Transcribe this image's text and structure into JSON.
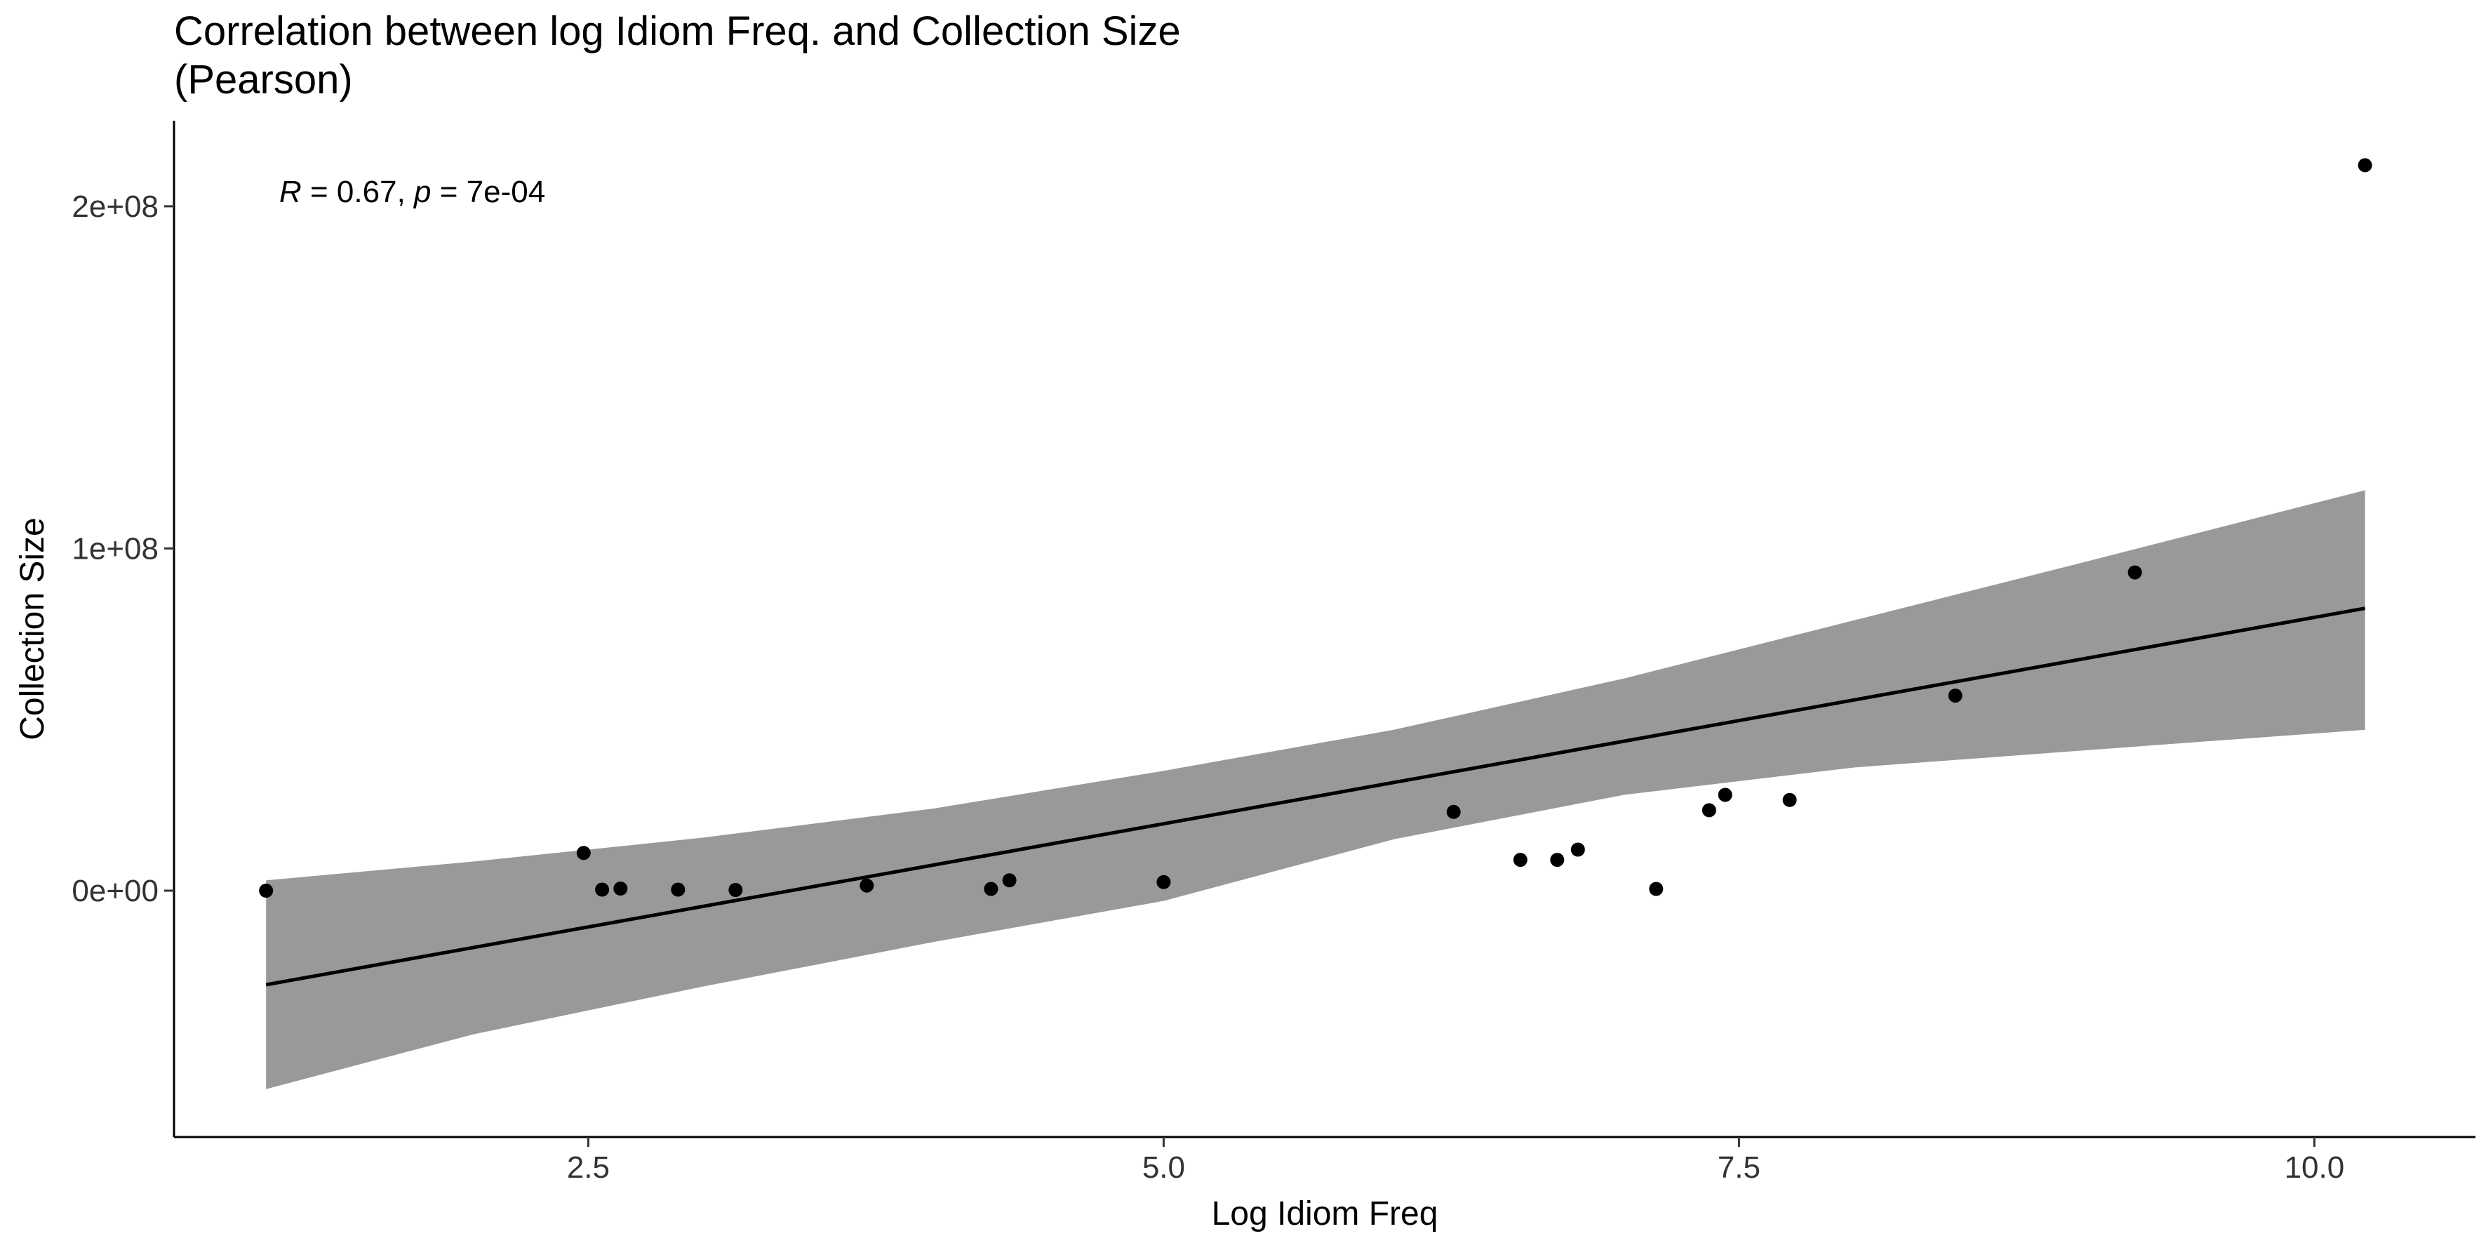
{
  "chart_data": {
    "type": "scatter",
    "title": "Correlation between log Idiom Freq. and Collection Size",
    "subtitle": "(Pearson)",
    "xlabel": "Log Idiom Freq",
    "ylabel": "Collection Size",
    "xlim": [
      0.7,
      10.7
    ],
    "ylim": [
      -72000000,
      225000000
    ],
    "x_ticks": [
      2.5,
      5.0,
      7.5,
      10.0
    ],
    "x_tick_labels": [
      "2.5",
      "5.0",
      "7.5",
      "10.0"
    ],
    "y_ticks": [
      0,
      100000000,
      200000000
    ],
    "y_tick_labels": [
      "0e+00",
      "1e+08",
      "2e+08"
    ],
    "grid": false,
    "annotation": {
      "r_symbol": "R",
      "r_value": " = 0.67, ",
      "p_symbol": "p",
      "p_value": " = 7e-04"
    },
    "points": [
      {
        "x": 1.1,
        "y": 0
      },
      {
        "x": 2.48,
        "y": 11000000
      },
      {
        "x": 2.56,
        "y": 300000
      },
      {
        "x": 2.64,
        "y": 600000
      },
      {
        "x": 2.89,
        "y": 300000
      },
      {
        "x": 3.14,
        "y": 200000
      },
      {
        "x": 3.71,
        "y": 1500000
      },
      {
        "x": 4.25,
        "y": 500000
      },
      {
        "x": 4.33,
        "y": 3000000
      },
      {
        "x": 5.0,
        "y": 2500000
      },
      {
        "x": 6.26,
        "y": 23000000
      },
      {
        "x": 6.55,
        "y": 9000000
      },
      {
        "x": 6.71,
        "y": 9000000
      },
      {
        "x": 6.8,
        "y": 12000000
      },
      {
        "x": 7.14,
        "y": 500000
      },
      {
        "x": 7.37,
        "y": 23500000
      },
      {
        "x": 7.44,
        "y": 28000000
      },
      {
        "x": 7.72,
        "y": 26500000
      },
      {
        "x": 8.44,
        "y": 57000000
      },
      {
        "x": 9.22,
        "y": 93000000
      },
      {
        "x": 10.22,
        "y": 212000000
      }
    ],
    "fit_line": {
      "x": [
        1.1,
        10.22
      ],
      "y": [
        -27500000,
        82500000
      ]
    },
    "confidence_band": {
      "x": [
        1.1,
        2.0,
        3.0,
        4.0,
        5.0,
        6.0,
        7.0,
        8.0,
        9.0,
        10.22
      ],
      "upper": [
        3000000,
        8500000,
        15500000,
        24000000,
        35000000,
        47000000,
        62000000,
        79000000,
        96000000,
        117000000
      ],
      "lower": [
        -58000000,
        -42000000,
        -28000000,
        -15000000,
        -3000000,
        15000000,
        28000000,
        36000000,
        41000000,
        47000000
      ]
    },
    "colors": {
      "points": "#000000",
      "fit_line": "#000000",
      "band": "#999999"
    }
  }
}
